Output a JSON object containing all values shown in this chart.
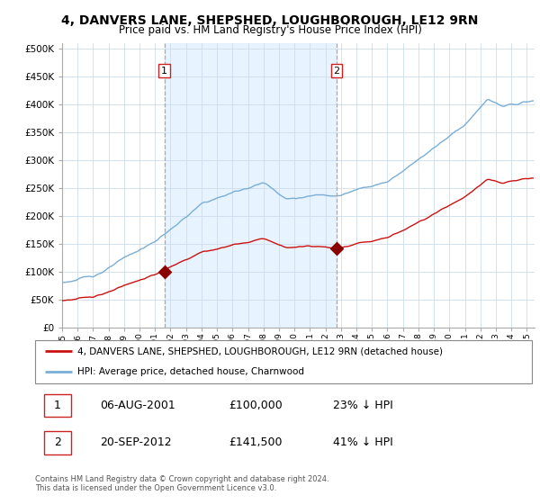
{
  "title": "4, DANVERS LANE, SHEPSHED, LOUGHBOROUGH, LE12 9RN",
  "subtitle": "Price paid vs. HM Land Registry's House Price Index (HPI)",
  "ytick_values": [
    0,
    50000,
    100000,
    150000,
    200000,
    250000,
    300000,
    350000,
    400000,
    450000,
    500000
  ],
  "ylim": [
    0,
    510000
  ],
  "xlim_start": 1995.0,
  "xlim_end": 2025.5,
  "purchase1_x": 2001.6,
  "purchase1_y": 100000,
  "purchase2_x": 2012.72,
  "purchase2_y": 141500,
  "hpi_color": "#7aaed6",
  "price_color": "#cc1111",
  "marker_color": "#880000",
  "dashed_line_color": "#aaaaaa",
  "shade_color": "#ddeeff",
  "legend_line1": "4, DANVERS LANE, SHEPSHED, LOUGHBOROUGH, LE12 9RN (detached house)",
  "legend_line2": "HPI: Average price, detached house, Charnwood",
  "table_entries": [
    {
      "num": "1",
      "date": "06-AUG-2001",
      "price": "£100,000",
      "hpi": "23% ↓ HPI"
    },
    {
      "num": "2",
      "date": "20-SEP-2012",
      "price": "£141,500",
      "hpi": "41% ↓ HPI"
    }
  ],
  "footnote": "Contains HM Land Registry data © Crown copyright and database right 2024.\nThis data is licensed under the Open Government Licence v3.0.",
  "bg_color": "#ffffff",
  "grid_color": "#ccddee",
  "title_fontsize": 10,
  "subtitle_fontsize": 8.5,
  "tick_fontsize": 7.5
}
